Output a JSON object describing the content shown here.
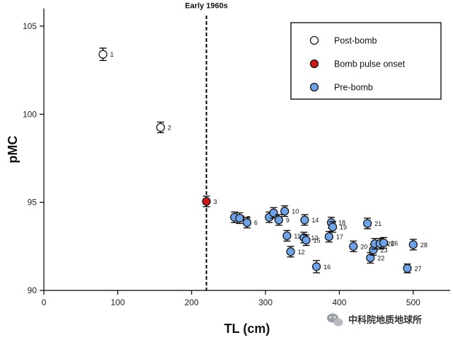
{
  "chart_data": {
    "type": "scatter",
    "title": "",
    "xlabel": "TL (cm)",
    "ylabel": "pMC",
    "xlim": [
      0,
      550
    ],
    "ylim": [
      90,
      106
    ],
    "xticks": [
      0,
      100,
      200,
      300,
      400,
      500
    ],
    "yticks": [
      90,
      95,
      100,
      105
    ],
    "grid": false,
    "legend_position": "top-right",
    "error_bars": true,
    "annotation": {
      "text": "Early 1960s",
      "x": 220
    },
    "series": [
      {
        "name": "Post-bomb",
        "color": "#ffffff",
        "points": [
          {
            "label": "1",
            "x": 80,
            "y": 103.4,
            "err": 0.35
          },
          {
            "label": "2",
            "x": 158,
            "y": 99.25,
            "err": 0.3
          }
        ]
      },
      {
        "name": "Bomb pulse onset",
        "color": "#cc1a1a",
        "points": [
          {
            "label": "3",
            "x": 220,
            "y": 95.05,
            "err": 0.3
          }
        ]
      },
      {
        "name": "Pre-bomb",
        "color": "#6fa2e6",
        "points": [
          {
            "label": "4",
            "x": 258,
            "y": 94.15,
            "err": 0.3
          },
          {
            "label": "5",
            "x": 265,
            "y": 94.1,
            "err": 0.3
          },
          {
            "label": "6",
            "x": 275,
            "y": 93.85,
            "err": 0.3
          },
          {
            "label": "7",
            "x": 305,
            "y": 94.15,
            "err": 0.3
          },
          {
            "label": "8",
            "x": 311,
            "y": 94.4,
            "err": 0.3
          },
          {
            "label": "9",
            "x": 318,
            "y": 94.0,
            "err": 0.3
          },
          {
            "label": "10",
            "x": 326,
            "y": 94.5,
            "err": 0.3
          },
          {
            "label": "11",
            "x": 329,
            "y": 93.1,
            "err": 0.3
          },
          {
            "label": "12",
            "x": 334,
            "y": 92.2,
            "err": 0.3
          },
          {
            "label": "13",
            "x": 352,
            "y": 93.0,
            "err": 0.3
          },
          {
            "label": "14",
            "x": 353,
            "y": 94.0,
            "err": 0.3
          },
          {
            "label": "15",
            "x": 355,
            "y": 92.85,
            "err": 0.3
          },
          {
            "label": "16",
            "x": 369,
            "y": 91.35,
            "err": 0.35
          },
          {
            "label": "17",
            "x": 386,
            "y": 93.05,
            "err": 0.3
          },
          {
            "label": "18",
            "x": 389,
            "y": 93.85,
            "err": 0.3
          },
          {
            "label": "19",
            "x": 391,
            "y": 93.6,
            "err": 0.3
          },
          {
            "label": "20",
            "x": 419,
            "y": 92.5,
            "err": 0.3
          },
          {
            "label": "21",
            "x": 438,
            "y": 93.8,
            "err": 0.3
          },
          {
            "label": "22",
            "x": 442,
            "y": 91.85,
            "err": 0.3
          },
          {
            "label": "23",
            "x": 446,
            "y": 92.3,
            "err": 0.3
          },
          {
            "label": "24",
            "x": 448,
            "y": 92.65,
            "err": 0.3
          },
          {
            "label": "25",
            "x": 455,
            "y": 92.65,
            "err": 0.3
          },
          {
            "label": "26",
            "x": 460,
            "y": 92.7,
            "err": 0.3
          },
          {
            "label": "27",
            "x": 492,
            "y": 91.25,
            "err": 0.25
          },
          {
            "label": "28",
            "x": 500,
            "y": 92.6,
            "err": 0.3
          }
        ]
      }
    ]
  },
  "watermark": {
    "text": "中科院地质地球所"
  }
}
